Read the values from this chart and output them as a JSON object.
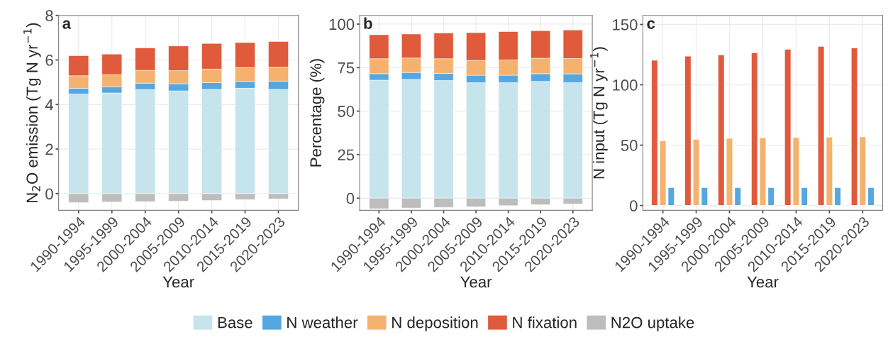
{
  "chart_data": [
    {
      "type": "bar",
      "title": "a",
      "stacked": true,
      "xlabel": "Year",
      "ylabel": "N$_{2}$O emission (Tg N yr$^{−1}$)",
      "categories": [
        "1990-1994",
        "1995-1999",
        "2000-2004",
        "2005-2009",
        "2010-2014",
        "2015-2019",
        "2020-2023"
      ],
      "ylim": [
        -0.75,
        8
      ],
      "yticks": [
        0,
        2,
        4,
        6,
        8
      ],
      "grid": true,
      "legend": "bottom",
      "series": [
        {
          "name": "Base",
          "color": "#c6e4ec",
          "values": [
            4.47,
            4.52,
            4.67,
            4.61,
            4.68,
            4.73,
            4.68
          ]
        },
        {
          "name": "N weather",
          "color": "#56a7e0",
          "values": [
            0.26,
            0.28,
            0.29,
            0.32,
            0.3,
            0.31,
            0.37
          ]
        },
        {
          "name": "N deposition",
          "color": "#f4b26e",
          "values": [
            0.56,
            0.54,
            0.57,
            0.59,
            0.61,
            0.62,
            0.62
          ]
        },
        {
          "name": "N fixation",
          "color": "#e05a3c",
          "values": [
            0.9,
            0.92,
            1.01,
            1.11,
            1.15,
            1.12,
            1.16
          ]
        },
        {
          "name": "N2O uptake",
          "color": "#bdbdbd",
          "values": [
            -0.4,
            -0.38,
            -0.36,
            -0.34,
            -0.31,
            -0.27,
            -0.24
          ]
        }
      ]
    },
    {
      "type": "bar",
      "title": "b",
      "stacked": true,
      "xlabel": "Year",
      "ylabel": "Percentage (%)",
      "categories": [
        "1990-1994",
        "1995-1999",
        "2000-2004",
        "2005-2009",
        "2010-2014",
        "2015-2019",
        "2020-2023"
      ],
      "ylim": [
        -7,
        105
      ],
      "yticks": [
        0,
        25,
        50,
        75,
        100
      ],
      "grid": true,
      "series": [
        {
          "name": "Base",
          "color": "#c6e4ec",
          "values": [
            67.8,
            68.2,
            67.6,
            66.3,
            66.4,
            67.1,
            66.4
          ]
        },
        {
          "name": "N weather",
          "color": "#56a7e0",
          "values": [
            3.7,
            4.0,
            4.1,
            4.3,
            4.2,
            4.4,
            5.0
          ]
        },
        {
          "name": "N deposition",
          "color": "#f4b26e",
          "values": [
            8.6,
            8.3,
            8.4,
            8.5,
            8.8,
            8.9,
            8.8
          ]
        },
        {
          "name": "N fixation",
          "color": "#e05a3c",
          "values": [
            13.8,
            13.8,
            14.8,
            16.0,
            16.3,
            15.8,
            16.4
          ]
        },
        {
          "name": "N2O uptake",
          "color": "#bdbdbd",
          "values": [
            -6.1,
            -5.7,
            -5.3,
            -5.0,
            -4.3,
            -3.8,
            -3.4
          ]
        }
      ]
    },
    {
      "type": "bar",
      "title": "c",
      "xlabel": "Year",
      "ylabel": "N input (Tg N yr$^{−1}$)",
      "categories": [
        "1990-1994",
        "1995-1999",
        "2000-2004",
        "2005-2009",
        "2010-2014",
        "2015-2019",
        "2020-2023"
      ],
      "ylim": [
        -4,
        157.5
      ],
      "yticks": [
        0,
        50,
        100,
        150
      ],
      "grid": true,
      "series": [
        {
          "name": "N fixation",
          "color": "#e05a3c",
          "values": [
            120.6,
            123.9,
            125.0,
            126.7,
            129.6,
            132.0,
            130.7
          ]
        },
        {
          "name": "N deposition",
          "color": "#f4b26e",
          "values": [
            53.9,
            55.0,
            55.9,
            56.3,
            56.5,
            56.9,
            57.0
          ]
        },
        {
          "name": "N weather",
          "color": "#56a7e0",
          "values": [
            15.0,
            15.0,
            15.0,
            15.0,
            15.0,
            15.0,
            15.0
          ]
        }
      ]
    }
  ]
}
